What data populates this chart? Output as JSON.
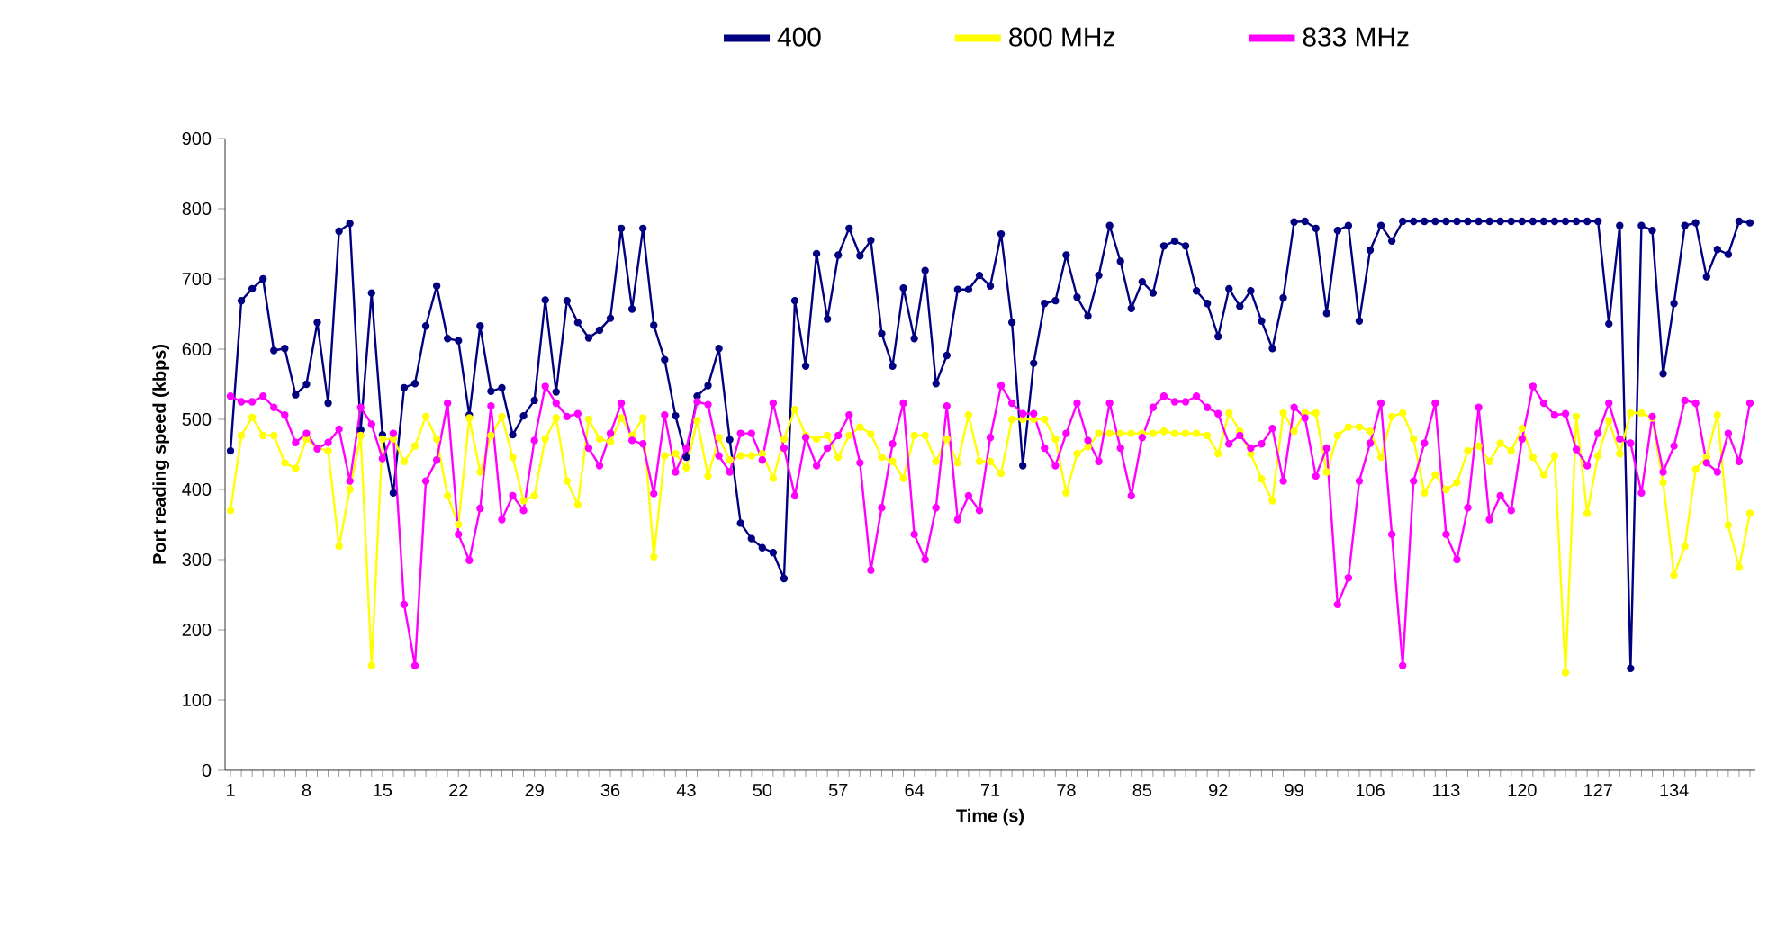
{
  "chart_data": {
    "type": "line",
    "xlabel": "Time (s)",
    "ylabel": "Port reading speed (kbps)",
    "categories": [
      "1",
      null,
      null,
      null,
      null,
      null,
      null,
      "8",
      null,
      null,
      null,
      null,
      null,
      null,
      "15",
      null,
      null,
      null,
      null,
      null,
      null,
      "22",
      null,
      null,
      null,
      null,
      null,
      null,
      "29",
      null,
      null,
      null,
      null,
      null,
      null,
      "36",
      null,
      null,
      null,
      null,
      null,
      null,
      "43",
      null,
      null,
      null,
      null,
      null,
      null,
      "50",
      null,
      null,
      null,
      null,
      null,
      null,
      "57",
      null,
      null,
      null,
      null,
      null,
      null,
      "64",
      null,
      null,
      null,
      null,
      null,
      null,
      "71",
      null,
      null,
      null,
      null,
      null,
      null,
      "78",
      null,
      null,
      null,
      null,
      null,
      null,
      "85",
      null,
      null,
      null,
      null,
      null,
      null,
      "92",
      null,
      null,
      null,
      null,
      null,
      null,
      "99",
      null,
      null,
      null,
      null,
      null,
      null,
      "106",
      null,
      null,
      null,
      null,
      null,
      null,
      "113",
      null,
      null,
      null,
      null,
      null,
      null,
      "120",
      null,
      null,
      null,
      null,
      null,
      null,
      "127",
      null,
      null,
      null,
      null,
      null,
      null,
      "134",
      null,
      null,
      null,
      null,
      null,
      null,
      null
    ],
    "series": [
      {
        "name": "400",
        "color": "#000080",
        "values": [
          455,
          669,
          686,
          700,
          598,
          601,
          535,
          550,
          638,
          523,
          768,
          779,
          485,
          680,
          478,
          395,
          545,
          551,
          633,
          690,
          615,
          612,
          506,
          633,
          540,
          545,
          478,
          505,
          527,
          670,
          539,
          669,
          638,
          616,
          627,
          644,
          772,
          657,
          772,
          634,
          585,
          505,
          446,
          533,
          548,
          601,
          471,
          352,
          330,
          317,
          310,
          273,
          669,
          576,
          736,
          643,
          734,
          772,
          733,
          755,
          622,
          576,
          687,
          615,
          712,
          551,
          591,
          685,
          685,
          705,
          690,
          764,
          638,
          434,
          580,
          665,
          669,
          734,
          674,
          647,
          705,
          776,
          725,
          658,
          696,
          680,
          747,
          754,
          747,
          683,
          665,
          618,
          686,
          661,
          683,
          640,
          601,
          673,
          781,
          782,
          772,
          651,
          769,
          776,
          640,
          741,
          776,
          754,
          782,
          782,
          782,
          782,
          782,
          782,
          782,
          782,
          782,
          782,
          782,
          782,
          782,
          782,
          782,
          782,
          782,
          782,
          782,
          636,
          776,
          145,
          776,
          769,
          565,
          665,
          776,
          780,
          703,
          742,
          735,
          782,
          780
        ]
      },
      {
        "name": "800 MHz",
        "color": "#ffff00",
        "values": [
          370,
          477,
          503,
          477,
          477,
          438,
          430,
          472,
          459,
          455,
          319,
          400,
          477,
          149,
          472,
          472,
          440,
          462,
          504,
          472,
          391,
          350,
          502,
          425,
          477,
          504,
          446,
          384,
          391,
          472,
          502,
          412,
          378,
          500,
          472,
          468,
          502,
          477,
          502,
          304,
          448,
          451,
          431,
          498,
          419,
          474,
          442,
          448,
          448,
          451,
          416,
          472,
          514,
          477,
          472,
          477,
          446,
          477,
          489,
          479,
          446,
          440,
          416,
          477,
          477,
          440,
          472,
          438,
          506,
          440,
          440,
          423,
          500,
          500,
          500,
          500,
          472,
          395,
          451,
          461,
          480,
          480,
          480,
          480,
          480,
          480,
          483,
          480,
          480,
          480,
          477,
          451,
          509,
          483,
          451,
          415,
          384,
          509,
          483,
          509,
          509,
          425,
          477,
          489,
          489,
          483,
          446,
          504,
          509,
          472,
          395,
          421,
          400,
          410,
          455,
          462,
          440,
          466,
          455,
          487,
          446,
          421,
          448,
          139,
          504,
          366,
          448,
          498,
          451,
          509,
          509,
          502,
          410,
          278,
          319,
          429,
          446,
          506,
          349,
          289,
          366
        ]
      },
      {
        "name": "833 MHz",
        "color": "#ff00ff",
        "values": [
          533,
          525,
          525,
          533,
          517,
          506,
          467,
          480,
          458,
          467,
          486,
          412,
          517,
          493,
          444,
          480,
          236,
          149,
          412,
          442,
          523,
          336,
          299,
          373,
          519,
          357,
          391,
          370,
          470,
          547,
          523,
          504,
          508,
          459,
          434,
          480,
          523,
          470,
          465,
          394,
          506,
          425,
          459,
          525,
          521,
          448,
          425,
          480,
          480,
          442,
          523,
          459,
          391,
          474,
          434,
          459,
          477,
          506,
          438,
          285,
          374,
          465,
          523,
          336,
          300,
          374,
          519,
          357,
          391,
          370,
          474,
          548,
          523,
          508,
          508,
          459,
          434,
          480,
          523,
          470,
          440,
          523,
          459,
          391,
          474,
          517,
          533,
          525,
          525,
          533,
          517,
          508,
          465,
          477,
          459,
          465,
          487,
          412,
          517,
          502,
          419,
          459,
          236,
          274,
          412,
          466,
          523,
          336,
          149,
          412,
          466,
          523,
          336,
          300,
          374,
          517,
          357,
          391,
          370,
          472,
          547,
          523,
          506,
          508,
          457,
          434,
          480,
          523,
          472,
          466,
          395,
          504,
          425,
          462,
          527,
          523,
          438,
          425,
          480,
          440,
          523
        ]
      }
    ],
    "ylim": [
      0,
      900
    ],
    "yticks": [
      0,
      100,
      200,
      300,
      400,
      500,
      600,
      700,
      800,
      900
    ],
    "grid": false,
    "legend": "top",
    "marker": "circle",
    "line_style": "solid"
  }
}
